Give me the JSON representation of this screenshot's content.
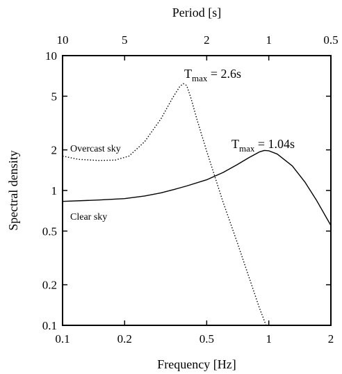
{
  "chart_data": {
    "type": "line",
    "xlabel": "Frequency [Hz]",
    "ylabel": "Spectral density",
    "top_xlabel": "Period [s]",
    "x_scale": "log",
    "y_scale": "log",
    "xlim": [
      0.1,
      2
    ],
    "ylim": [
      0.1,
      10
    ],
    "x_ticks": [
      0.1,
      0.2,
      0.5,
      1,
      2
    ],
    "x_tick_labels": [
      "0.1",
      "0.2",
      "0.5",
      "1",
      "2"
    ],
    "y_ticks": [
      0.1,
      0.2,
      0.5,
      1,
      2,
      5,
      10
    ],
    "y_tick_labels": [
      "0.1",
      "0.2",
      "0.5",
      "1",
      "2",
      "5",
      "10"
    ],
    "top_ticks": [
      10,
      5,
      2,
      1,
      0.5
    ],
    "top_tick_labels": [
      "10",
      "5",
      "2",
      "1",
      "0.5"
    ],
    "grid": false,
    "legend": "none",
    "series": [
      {
        "label": "Overcast sky",
        "style": "dotted",
        "x": [
          0.1,
          0.12,
          0.15,
          0.18,
          0.21,
          0.25,
          0.3,
          0.34,
          0.37,
          0.385,
          0.4,
          0.42,
          0.45,
          0.5,
          0.6,
          0.7,
          0.8,
          0.9,
          0.97
        ],
        "y": [
          1.8,
          1.7,
          1.67,
          1.68,
          1.8,
          2.3,
          3.4,
          4.8,
          5.9,
          6.2,
          6.0,
          4.8,
          3.3,
          1.95,
          0.82,
          0.42,
          0.23,
          0.135,
          0.1
        ]
      },
      {
        "label": "Clear sky",
        "style": "solid",
        "x": [
          0.1,
          0.15,
          0.2,
          0.25,
          0.3,
          0.35,
          0.4,
          0.5,
          0.6,
          0.7,
          0.8,
          0.9,
          0.95,
          1.0,
          1.1,
          1.3,
          1.5,
          1.7,
          2.0
        ],
        "y": [
          0.83,
          0.85,
          0.87,
          0.91,
          0.96,
          1.02,
          1.08,
          1.2,
          1.36,
          1.55,
          1.75,
          1.93,
          1.98,
          1.97,
          1.86,
          1.52,
          1.15,
          0.85,
          0.55
        ]
      }
    ],
    "annotations": {
      "overcast_tmax_main": "T",
      "overcast_tmax_sub": "max",
      "overcast_tmax_value": " = 2.6s",
      "clear_tmax_main": "T",
      "clear_tmax_sub": "max",
      "clear_tmax_value": " = 1.04s"
    }
  }
}
